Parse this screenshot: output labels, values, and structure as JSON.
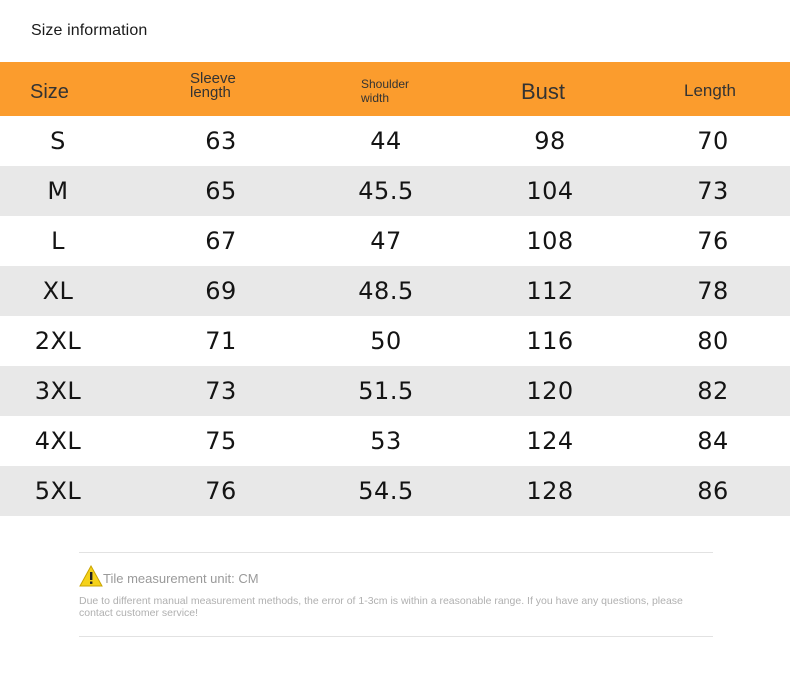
{
  "title": "Size information",
  "colors": {
    "header_bg": "#fb9c2d",
    "alt_row_bg": "#e8e8e8"
  },
  "table": {
    "headers": {
      "size": "Size",
      "sleeve_line1": "Sleeve",
      "sleeve_line2": "length",
      "shoulder_line1": "Shoulder",
      "shoulder_line2": "width",
      "bust": "Bust",
      "length": "Length"
    },
    "rows": [
      [
        "S",
        "63",
        "44",
        "98",
        "70"
      ],
      [
        "M",
        "65",
        "45.5",
        "104",
        "73"
      ],
      [
        "L",
        "67",
        "47",
        "108",
        "76"
      ],
      [
        "XL",
        "69",
        "48.5",
        "112",
        "78"
      ],
      [
        "2XL",
        "71",
        "50",
        "116",
        "80"
      ],
      [
        "3XL",
        "73",
        "51.5",
        "120",
        "82"
      ],
      [
        "4XL",
        "75",
        "53",
        "124",
        "84"
      ],
      [
        "5XL",
        "76",
        "54.5",
        "128",
        "86"
      ]
    ]
  },
  "footer": {
    "warning_icon": "warning-triangle-icon",
    "notice": "Tile measurement unit: CM",
    "disclaimer": "Due to different manual measurement methods, the error of 1-3cm is within a reasonable range. If you have any questions, please contact customer service!"
  }
}
